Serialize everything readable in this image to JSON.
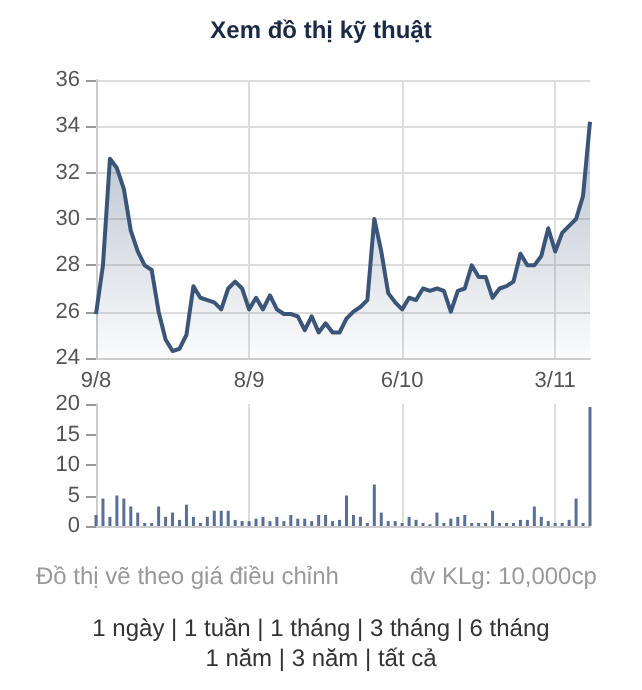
{
  "chart_data": [
    {
      "type": "area",
      "title": "Xem đồ thị kỹ thuật",
      "categories": [
        "9/8",
        null,
        null,
        null,
        null,
        null,
        null,
        null,
        null,
        null,
        null,
        null,
        null,
        null,
        null,
        null,
        null,
        null,
        null,
        null,
        null,
        null,
        "8/9",
        null,
        null,
        null,
        null,
        null,
        null,
        null,
        null,
        null,
        null,
        null,
        null,
        null,
        null,
        null,
        null,
        null,
        null,
        null,
        null,
        null,
        "6/10",
        null,
        null,
        null,
        null,
        null,
        null,
        null,
        null,
        null,
        null,
        null,
        null,
        null,
        null,
        null,
        null,
        null,
        null,
        null,
        null,
        null,
        "3/11",
        null,
        null,
        null,
        null,
        null
      ],
      "series": [
        {
          "color": "#3b5578",
          "values": [
            25.9,
            28.0,
            32.6,
            32.2,
            31.3,
            29.5,
            28.6,
            28.0,
            27.8,
            26.0,
            24.8,
            24.3,
            24.4,
            25.0,
            27.1,
            26.6,
            26.5,
            26.4,
            26.1,
            27.0,
            27.3,
            27.0,
            26.1,
            26.6,
            26.1,
            26.7,
            26.1,
            25.9,
            25.9,
            25.8,
            25.2,
            25.8,
            25.1,
            25.5,
            25.1,
            25.1,
            25.7,
            26.0,
            26.2,
            26.5,
            30.0,
            28.6,
            26.8,
            26.4,
            26.1,
            26.6,
            26.5,
            27.0,
            26.9,
            27.0,
            26.9,
            26.0,
            26.9,
            27.0,
            28.0,
            27.5,
            27.5,
            26.6,
            27.0,
            27.1,
            27.3,
            28.5,
            28.0,
            28.0,
            28.4,
            29.6,
            28.6,
            29.4,
            29.7,
            30.0,
            31.0,
            34.2
          ]
        }
      ],
      "ylim": [
        24,
        36
      ],
      "yticks": [
        24,
        26,
        28,
        30,
        32,
        34,
        36
      ],
      "grid": true
    },
    {
      "type": "bar",
      "categories": [
        null,
        null,
        null,
        null,
        null,
        null,
        null,
        null,
        null,
        null,
        null,
        null,
        null,
        null,
        null,
        null,
        null,
        null,
        null,
        null,
        null,
        null,
        null,
        null,
        null,
        null,
        null,
        null,
        null,
        null,
        null,
        null,
        null,
        null,
        null,
        null,
        null,
        null,
        null,
        null,
        null,
        null,
        null,
        null,
        null,
        null,
        null,
        null,
        null,
        null,
        null,
        null,
        null,
        null,
        null,
        null,
        null,
        null,
        null,
        null,
        null,
        null,
        null,
        null,
        null,
        null,
        null,
        null,
        null,
        null,
        null,
        null
      ],
      "series": [
        {
          "color": "#5a6f95",
          "values": [
            1.8,
            4.5,
            1.5,
            5,
            4.5,
            3.2,
            2.2,
            0.5,
            0.5,
            3.2,
            1.5,
            2.2,
            1,
            3.5,
            1.5,
            0.5,
            1.5,
            2.5,
            2.5,
            2.5,
            1,
            0.8,
            0.8,
            1.2,
            1.5,
            0.8,
            1.5,
            0.8,
            1.8,
            1.2,
            1.2,
            0.8,
            1.8,
            1.8,
            0.8,
            1,
            5,
            1.8,
            1.5,
            0.5,
            6.8,
            2.2,
            0.8,
            0.8,
            0.5,
            1.5,
            1,
            0.5,
            0.3,
            2.2,
            0.5,
            1.2,
            1.5,
            1.8,
            0.5,
            0.5,
            0.5,
            2.5,
            0.5,
            0.5,
            0.5,
            1,
            1,
            3.2,
            1.5,
            0.8,
            0.5,
            0.5,
            1,
            4.5,
            0.5,
            19.5
          ]
        }
      ],
      "ylim": [
        0,
        20
      ],
      "yticks": [
        0,
        5,
        10,
        15,
        20
      ],
      "grid": "x",
      "tick_labels": "y",
      "annotations": [
        "Đồ thị vẽ theo giá điều chỉnh",
        "đv KLg: 10,000cp",
        "1 ngày | 1 tuần | 1 tháng | 3 tháng | 6 tháng",
        "1 năm | 3 năm | tất cả"
      ]
    }
  ]
}
